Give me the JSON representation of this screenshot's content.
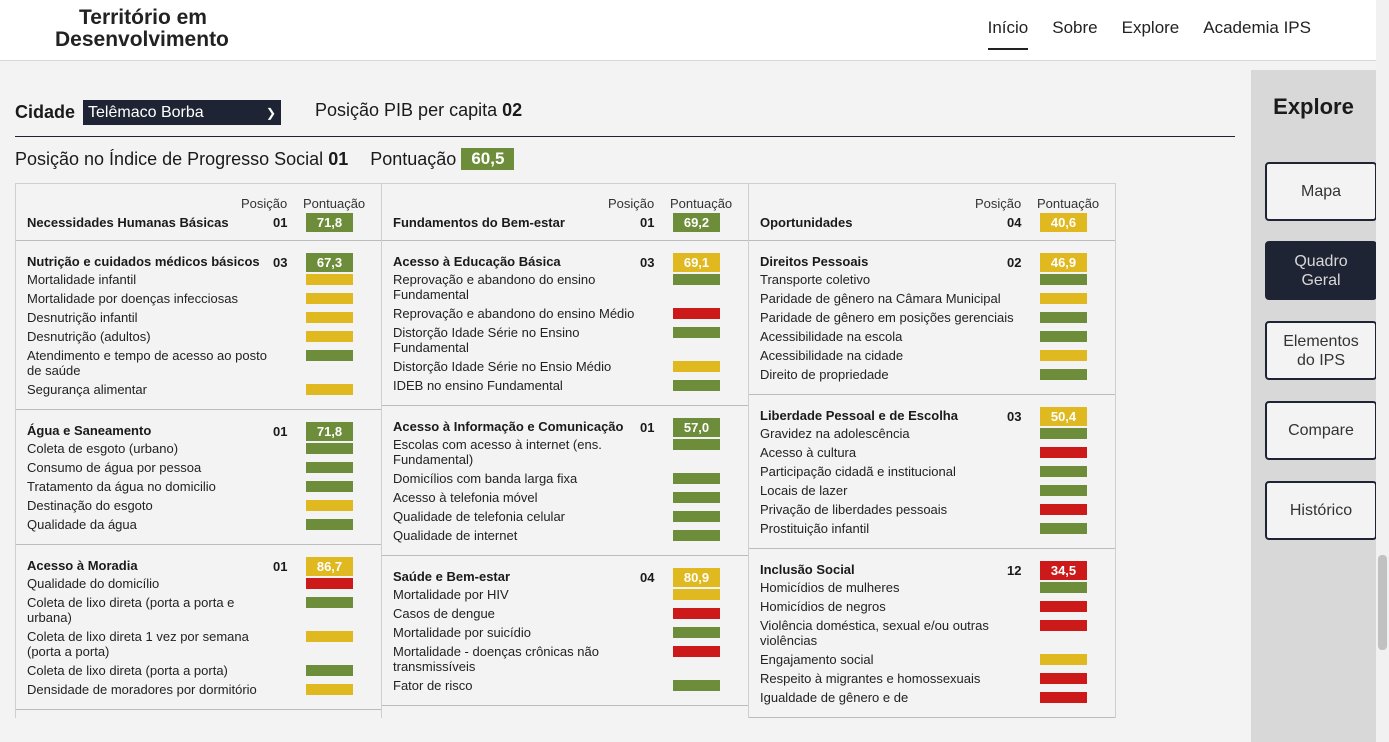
{
  "brand": {
    "line1": "Território em",
    "line2": "Desenvolvimento"
  },
  "nav": [
    {
      "label": "Início",
      "active": true
    },
    {
      "label": "Sobre"
    },
    {
      "label": "Explore"
    },
    {
      "label": "Academia IPS"
    }
  ],
  "colors": {
    "green": "#6e8d3a",
    "yellow": "#e0b820",
    "red": "#cc1a1a",
    "navy": "#1e2433"
  },
  "city": {
    "label": "Cidade",
    "selected": "Telêmaco Borba"
  },
  "pib": {
    "label": "Posição PIB per capita",
    "value": "02"
  },
  "ips": {
    "pos_label": "Posição no Índice de Progresso Social",
    "pos_value": "01",
    "score_label": "Pontuação",
    "score_value": "60,5"
  },
  "headers": {
    "pos": "Posição",
    "score": "Pontuação"
  },
  "dimensions": [
    {
      "name": "Necessidades Humanas Básicas",
      "pos": "01",
      "score": "71,8",
      "color": "green",
      "components": [
        {
          "name": "Nutrição e cuidados médicos básicos",
          "pos": "03",
          "score": "67,3",
          "color": "green",
          "indicators": [
            {
              "name": "Mortalidade infantil",
              "color": "yellow"
            },
            {
              "name": "Mortalidade por doenças infecciosas",
              "color": "yellow"
            },
            {
              "name": "Desnutrição infantil",
              "color": "yellow"
            },
            {
              "name": "Desnutrição (adultos)",
              "color": "yellow"
            },
            {
              "name": "Atendimento e tempo de acesso ao posto de saúde",
              "color": "green"
            },
            {
              "name": "Segurança alimentar",
              "color": "yellow"
            }
          ]
        },
        {
          "name": "Água e Saneamento",
          "pos": "01",
          "score": "71,8",
          "color": "green",
          "indicators": [
            {
              "name": "Coleta de esgoto (urbano)",
              "color": "green"
            },
            {
              "name": "Consumo de água por pessoa",
              "color": "green"
            },
            {
              "name": "Tratamento da água no domicilio",
              "color": "green"
            },
            {
              "name": "Destinação do esgoto",
              "color": "yellow"
            },
            {
              "name": "Qualidade da água",
              "color": "green"
            }
          ]
        },
        {
          "name": "Acesso à Moradia",
          "pos": "01",
          "score": "86,7",
          "color": "yellow",
          "indicators": [
            {
              "name": "Qualidade do domicílio",
              "color": "red"
            },
            {
              "name": "Coleta de lixo direta (porta a porta e urbana)",
              "color": "green"
            },
            {
              "name": "Coleta de lixo direta 1 vez por semana (porta a porta)",
              "color": "yellow"
            },
            {
              "name": "Coleta de lixo direta (porta a porta)",
              "color": "green"
            },
            {
              "name": "Densidade de moradores por dormitório",
              "color": "yellow"
            }
          ]
        }
      ]
    },
    {
      "name": "Fundamentos do Bem-estar",
      "pos": "01",
      "score": "69,2",
      "color": "green",
      "components": [
        {
          "name": "Acesso à Educação Básica",
          "pos": "03",
          "score": "69,1",
          "color": "yellow",
          "indicators": [
            {
              "name": "Reprovação e abandono do ensino Fundamental",
              "color": "green"
            },
            {
              "name": "Reprovação e abandono do ensino Médio",
              "color": "red"
            },
            {
              "name": "Distorção Idade Série no Ensino Fundamental",
              "color": "green"
            },
            {
              "name": "Distorção Idade Série no Ensio Médio",
              "color": "yellow"
            },
            {
              "name": "IDEB no ensino Fundamental",
              "color": "green"
            }
          ]
        },
        {
          "name": "Acesso à Informação e Comunicação",
          "pos": "01",
          "score": "57,0",
          "color": "green",
          "indicators": [
            {
              "name": "Escolas com acesso à internet (ens. Fundamental)",
              "color": "green"
            },
            {
              "name": "Domicílios com banda larga fixa",
              "color": "green"
            },
            {
              "name": "Acesso à telefonia móvel",
              "color": "green"
            },
            {
              "name": "Qualidade de telefonia celular",
              "color": "green"
            },
            {
              "name": "Qualidade de internet",
              "color": "green"
            }
          ]
        },
        {
          "name": "Saúde e Bem-estar",
          "pos": "04",
          "score": "80,9",
          "color": "yellow",
          "indicators": [
            {
              "name": "Mortalidade por HIV",
              "color": "yellow"
            },
            {
              "name": "Casos de dengue",
              "color": "red"
            },
            {
              "name": "Mortalidade por suicídio",
              "color": "green"
            },
            {
              "name": "Mortalidade - doenças crônicas não transmissíveis",
              "color": "red"
            },
            {
              "name": "Fator de risco",
              "color": "green"
            }
          ]
        }
      ]
    },
    {
      "name": "Oportunidades",
      "pos": "04",
      "score": "40,6",
      "color": "yellow",
      "components": [
        {
          "name": "Direitos Pessoais",
          "pos": "02",
          "score": "46,9",
          "color": "yellow",
          "indicators": [
            {
              "name": "Transporte coletivo",
              "color": "green"
            },
            {
              "name": "Paridade de gênero na Câmara Municipal",
              "color": "yellow"
            },
            {
              "name": "Paridade de gênero em posições gerenciais",
              "color": "green"
            },
            {
              "name": "Acessibilidade na escola",
              "color": "green"
            },
            {
              "name": "Acessibilidade na cidade",
              "color": "yellow"
            },
            {
              "name": "Direito de propriedade",
              "color": "green"
            }
          ]
        },
        {
          "name": "Liberdade Pessoal e de Escolha",
          "pos": "03",
          "score": "50,4",
          "color": "yellow",
          "indicators": [
            {
              "name": "Gravidez na adolescência",
              "color": "green"
            },
            {
              "name": "Acesso à cultura",
              "color": "red"
            },
            {
              "name": "Participação cidadã e institucional",
              "color": "green"
            },
            {
              "name": "Locais de lazer",
              "color": "green"
            },
            {
              "name": "Privação de liberdades pessoais",
              "color": "red"
            },
            {
              "name": "Prostituição infantil",
              "color": "green"
            }
          ]
        },
        {
          "name": "Inclusão Social",
          "pos": "12",
          "score": "34,5",
          "color": "red",
          "indicators": [
            {
              "name": "Homicídios de mulheres",
              "color": "green"
            },
            {
              "name": "Homicídios de negros",
              "color": "red"
            },
            {
              "name": "Violência doméstica, sexual e/ou outras violências",
              "color": "red"
            },
            {
              "name": "Engajamento social",
              "color": "yellow"
            },
            {
              "name": "Respeito à migrantes e homossexuais",
              "color": "red"
            },
            {
              "name": "Igualdade de gênero e de",
              "color": "red"
            }
          ]
        }
      ]
    }
  ],
  "sidebar": {
    "title": "Explore",
    "buttons": [
      {
        "label": "Mapa",
        "active": false
      },
      {
        "label": "Quadro Geral",
        "active": true
      },
      {
        "label": "Elementos do IPS",
        "active": false
      },
      {
        "label": "Compare",
        "active": false
      },
      {
        "label": "Histórico",
        "active": false
      }
    ]
  }
}
